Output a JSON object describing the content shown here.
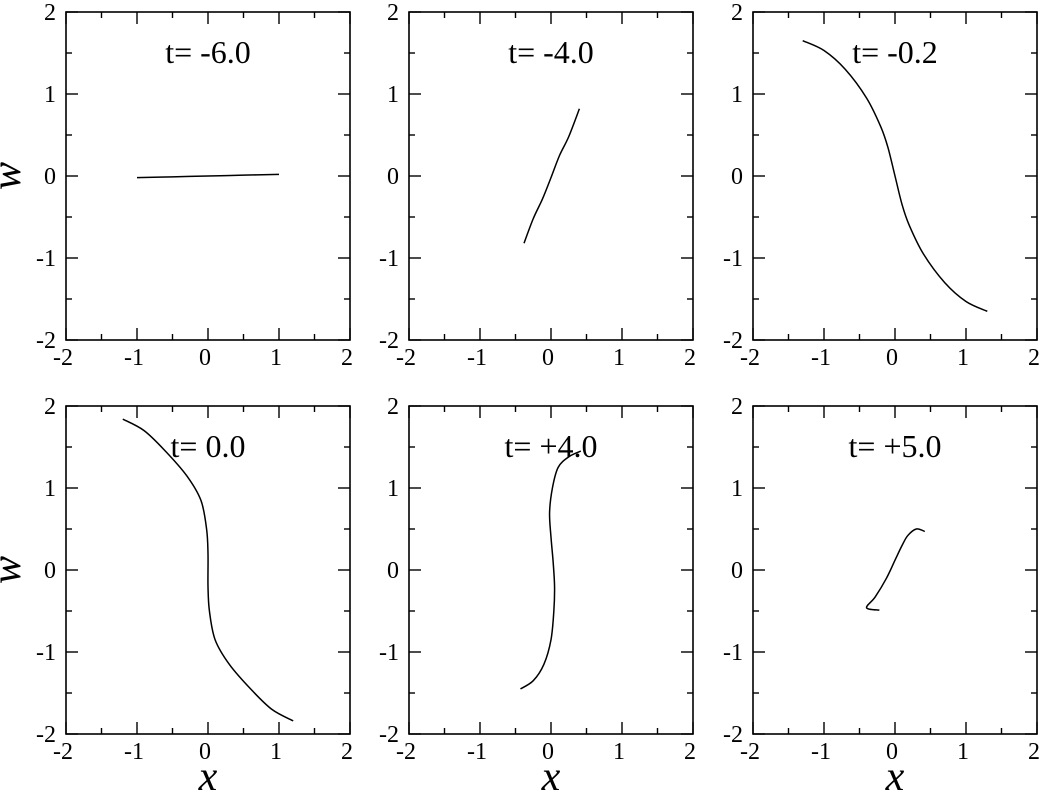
{
  "chart_data": [
    {
      "type": "line",
      "title": "t= -6.0",
      "xlabel": "",
      "ylabel": "w",
      "xlim": [
        -2,
        2
      ],
      "ylim": [
        -2,
        2
      ],
      "xticks": [
        "-2",
        "-1",
        "0",
        "1",
        "2"
      ],
      "yticks": [
        "-2",
        "-1",
        "0",
        "1",
        "2"
      ],
      "grid": false,
      "series": [
        {
          "x": [
            -1.0,
            -0.5,
            0.0,
            0.5,
            1.0
          ],
          "y": [
            -0.02,
            -0.01,
            0.0,
            0.01,
            0.02
          ]
        }
      ]
    },
    {
      "type": "line",
      "title": "t= -4.0",
      "xlabel": "",
      "ylabel": "",
      "xlim": [
        -2,
        2
      ],
      "ylim": [
        -2,
        2
      ],
      "xticks": [
        "-2",
        "-1",
        "0",
        "1",
        "2"
      ],
      "yticks": [
        "-2",
        "-1",
        "0",
        "1",
        "2"
      ],
      "grid": false,
      "series": [
        {
          "x": [
            -0.38,
            -0.25,
            -0.12,
            0.0,
            0.12,
            0.25,
            0.4
          ],
          "y": [
            -0.82,
            -0.52,
            -0.28,
            -0.02,
            0.25,
            0.48,
            0.82
          ]
        }
      ]
    },
    {
      "type": "line",
      "title": "t= -0.2",
      "xlabel": "",
      "ylabel": "",
      "xlim": [
        -2,
        2
      ],
      "ylim": [
        -2,
        2
      ],
      "xticks": [
        "-2",
        "-1",
        "0",
        "1",
        "2"
      ],
      "yticks": [
        "-2",
        "-1",
        "0",
        "1",
        "2"
      ],
      "grid": false,
      "series": [
        {
          "x": [
            -1.3,
            -1.0,
            -0.7,
            -0.4,
            -0.2,
            -0.1,
            0.0,
            0.1,
            0.2,
            0.4,
            0.7,
            1.0,
            1.3
          ],
          "y": [
            1.65,
            1.53,
            1.3,
            0.95,
            0.6,
            0.35,
            0.0,
            -0.35,
            -0.6,
            -0.95,
            -1.3,
            -1.53,
            -1.65
          ]
        }
      ]
    },
    {
      "type": "line",
      "title": "t= 0.0",
      "xlabel": "x",
      "ylabel": "w",
      "xlim": [
        -2,
        2
      ],
      "ylim": [
        -2,
        2
      ],
      "xticks": [
        "-2",
        "-1",
        "0",
        "1",
        "2"
      ],
      "yticks": [
        "-2",
        "-1",
        "0",
        "1",
        "2"
      ],
      "grid": false,
      "series": [
        {
          "x": [
            -1.2,
            -0.9,
            -0.6,
            -0.3,
            -0.1,
            -0.02,
            0.0,
            0.0,
            0.02,
            0.1,
            0.3,
            0.6,
            0.9,
            1.2
          ],
          "y": [
            1.84,
            1.7,
            1.45,
            1.15,
            0.85,
            0.5,
            0.2,
            -0.2,
            -0.5,
            -0.85,
            -1.15,
            -1.45,
            -1.7,
            -1.84
          ]
        }
      ]
    },
    {
      "type": "line",
      "title": "t= +4.0",
      "xlabel": "x",
      "ylabel": "",
      "xlim": [
        -2,
        2
      ],
      "ylim": [
        -2,
        2
      ],
      "xticks": [
        "-2",
        "-1",
        "0",
        "1",
        "2"
      ],
      "yticks": [
        "-2",
        "-1",
        "0",
        "1",
        "2"
      ],
      "grid": false,
      "series": [
        {
          "x": [
            0.42,
            0.25,
            0.1,
            0.02,
            -0.02,
            0.0,
            0.03,
            0.05,
            0.04,
            0.0,
            -0.1,
            -0.25,
            -0.43
          ],
          "y": [
            1.45,
            1.38,
            1.25,
            1.0,
            0.7,
            0.4,
            0.1,
            -0.2,
            -0.5,
            -0.85,
            -1.15,
            -1.35,
            -1.45
          ]
        }
      ]
    },
    {
      "type": "line",
      "title": "t= +5.0",
      "xlabel": "x",
      "ylabel": "",
      "xlim": [
        -2,
        2
      ],
      "ylim": [
        -2,
        2
      ],
      "xticks": [
        "-2",
        "-1",
        "0",
        "1",
        "2"
      ],
      "yticks": [
        "-2",
        "-1",
        "0",
        "1",
        "2"
      ],
      "grid": false,
      "series": [
        {
          "x": [
            0.42,
            0.3,
            0.18,
            0.1,
            0.0,
            -0.12,
            -0.28,
            -0.4,
            -0.22
          ],
          "y": [
            0.47,
            0.5,
            0.42,
            0.3,
            0.12,
            -0.1,
            -0.33,
            -0.46,
            -0.49
          ]
        }
      ]
    }
  ]
}
